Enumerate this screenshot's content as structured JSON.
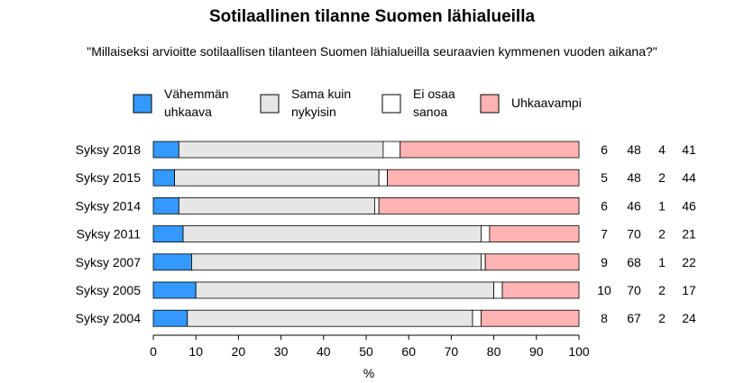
{
  "chart_data": {
    "type": "bar",
    "stacked": true,
    "orientation": "horizontal",
    "title": "Sotilaallinen tilanne Suomen lähialueilla",
    "subtitle": "\"Millaiseksi arvioitte sotilaallisen tilanteen Suomen lähialueilla seuraavien kymmenen vuoden aikana?\"",
    "xlabel": "%",
    "xlim": [
      0,
      100
    ],
    "xticks": [
      0,
      10,
      20,
      30,
      40,
      50,
      60,
      70,
      80,
      90,
      100
    ],
    "legend_position": "top",
    "categories": [
      "Syksy 2018",
      "Syksy 2015",
      "Syksy 2014",
      "Syksy 2011",
      "Syksy 2007",
      "Syksy 2005",
      "Syksy 2004"
    ],
    "series": [
      {
        "name": "Vähemmän uhkaava",
        "label_lines": [
          "Vähemmän",
          "uhkaava"
        ],
        "color": "#3399ff",
        "values": [
          6,
          5,
          6,
          7,
          9,
          10,
          8
        ]
      },
      {
        "name": "Sama kuin nykyisin",
        "label_lines": [
          "Sama kuin",
          "nykyisin"
        ],
        "color": "#e6e6e6",
        "values": [
          48,
          48,
          46,
          70,
          68,
          70,
          67
        ]
      },
      {
        "name": "Ei osaa sanoa",
        "label_lines": [
          "Ei osaa",
          "sanoa"
        ],
        "color": "#ffffff",
        "values": [
          4,
          2,
          1,
          2,
          1,
          2,
          2
        ]
      },
      {
        "name": "Uhkaavampi",
        "label_lines": [
          "Uhkaavampi"
        ],
        "color": "#ffb3b3",
        "values": [
          41,
          44,
          46,
          21,
          22,
          17,
          24
        ]
      }
    ]
  }
}
